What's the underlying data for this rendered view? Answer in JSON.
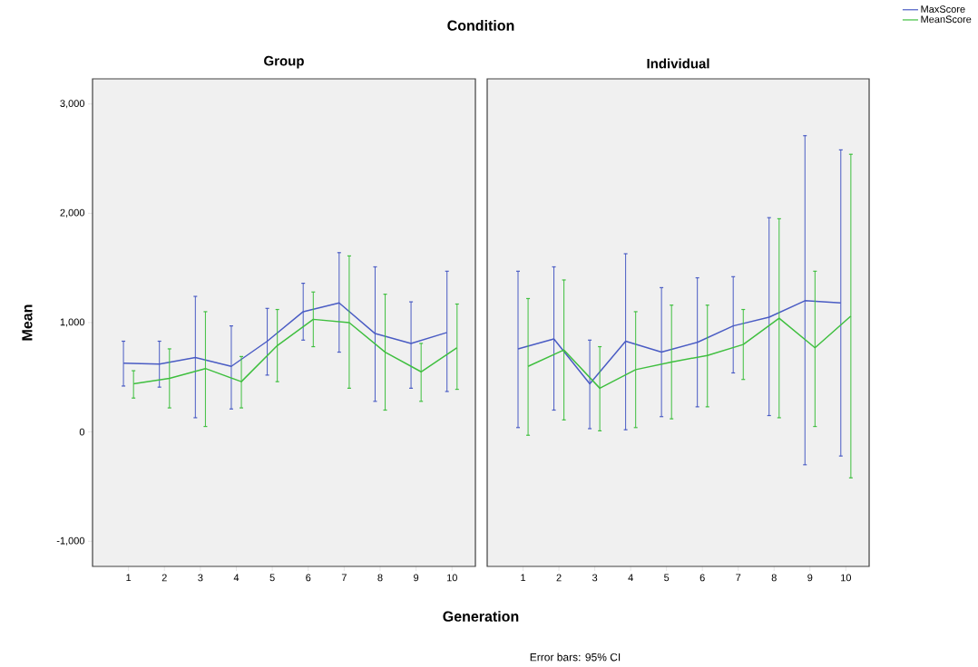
{
  "chart_data": [
    {
      "type": "line",
      "title": "Group",
      "xlabel": "Generation",
      "ylabel": "Mean",
      "legend": "top right",
      "annotations": [
        "Condition",
        "Error bars: 95% CI"
      ],
      "categories": [
        "1",
        "2",
        "3",
        "4",
        "5",
        "6",
        "7",
        "8",
        "9",
        "10"
      ],
      "ylim": [
        -1230,
        3230
      ],
      "yticks": [
        {
          "value": -1000,
          "label": "-1,000"
        },
        0,
        {
          "value": 1000,
          "label": "1,000"
        },
        {
          "value": 2000,
          "label": "2,000"
        },
        {
          "value": 3000,
          "label": "3,000"
        }
      ],
      "series": [
        {
          "name": "MaxScore",
          "color": "#4a5cc4",
          "values": [
            630,
            620,
            680,
            600,
            830,
            1100,
            1180,
            900,
            810,
            910
          ],
          "errors": [
            [
              420,
              830
            ],
            [
              410,
              830
            ],
            [
              130,
              1240
            ],
            [
              210,
              970
            ],
            [
              520,
              1130
            ],
            [
              840,
              1360
            ],
            [
              730,
              1640
            ],
            [
              280,
              1510
            ],
            [
              400,
              1190
            ],
            [
              370,
              1470
            ]
          ]
        },
        {
          "name": "MeanScore",
          "color": "#3fbf3f",
          "values": [
            440,
            490,
            580,
            460,
            790,
            1030,
            1000,
            730,
            550,
            770
          ],
          "errors": [
            [
              310,
              560
            ],
            [
              220,
              760
            ],
            [
              50,
              1100
            ],
            [
              220,
              690
            ],
            [
              460,
              1120
            ],
            [
              780,
              1280
            ],
            [
              400,
              1610
            ],
            [
              200,
              1260
            ],
            [
              280,
              810
            ],
            [
              390,
              1170
            ]
          ]
        }
      ]
    },
    {
      "type": "line",
      "title": "Individual",
      "tick_labels": "x",
      "categories": [
        "1",
        "2",
        "3",
        "4",
        "5",
        "6",
        "7",
        "8",
        "9",
        "10"
      ],
      "ylim": [
        -1230,
        3230
      ],
      "series": [
        {
          "color": "#4a5cc4",
          "values": [
            760,
            850,
            440,
            830,
            730,
            820,
            970,
            1050,
            1200,
            1180
          ],
          "errors": [
            [
              40,
              1470
            ],
            [
              200,
              1510
            ],
            [
              30,
              840
            ],
            [
              20,
              1630
            ],
            [
              140,
              1320
            ],
            [
              230,
              1410
            ],
            [
              540,
              1420
            ],
            [
              150,
              1960
            ],
            [
              -300,
              2710
            ],
            [
              -220,
              2580
            ]
          ]
        },
        {
          "color": "#3fbf3f",
          "values": [
            600,
            750,
            400,
            570,
            640,
            700,
            800,
            1040,
            770,
            1060
          ],
          "errors": [
            [
              -30,
              1220
            ],
            [
              110,
              1390
            ],
            [
              10,
              780
            ],
            [
              40,
              1100
            ],
            [
              120,
              1160
            ],
            [
              230,
              1160
            ],
            [
              480,
              1120
            ],
            [
              130,
              1950
            ],
            [
              50,
              1470
            ],
            [
              -420,
              2540
            ]
          ]
        }
      ]
    }
  ]
}
